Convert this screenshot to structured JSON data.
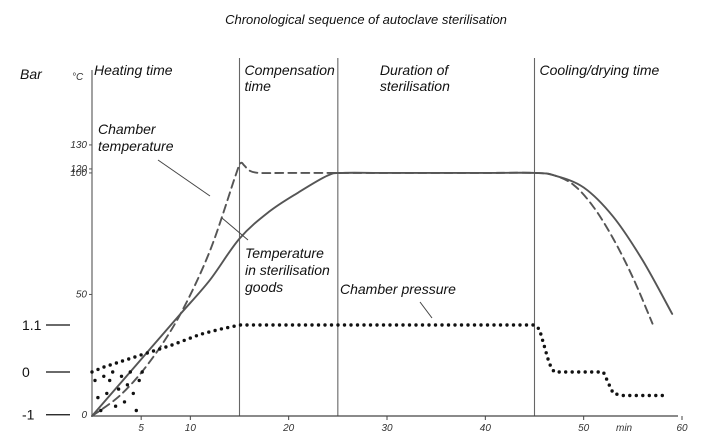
{
  "chart_data": {
    "type": "line",
    "title": "Chronological sequence of autoclave sterilisation",
    "x_unit": "min",
    "xlim": [
      0,
      60
    ],
    "x_ticks": [
      5,
      10,
      20,
      30,
      40,
      50,
      60
    ],
    "temp_unit": "°C",
    "temp_ylim": [
      0,
      130
    ],
    "temp_ticks": [
      50,
      100,
      120,
      130
    ],
    "pressure_unit": "Bar",
    "pressure_ticks": [
      {
        "label": "1.1",
        "value": 1.1
      },
      {
        "label": "0",
        "value": 0
      },
      {
        "label": "-1",
        "value": -1
      }
    ],
    "phases": [
      {
        "label_lines": [
          "Heating time"
        ],
        "start": 0,
        "end": 15
      },
      {
        "label_lines": [
          "Compensation",
          "time"
        ],
        "start": 15,
        "end": 25
      },
      {
        "label_lines": [
          "Duration of",
          "sterilisation"
        ],
        "start": 25,
        "end": 45
      },
      {
        "label_lines": [
          "Cooling/drying time"
        ],
        "start": 45,
        "end": 60
      }
    ],
    "series": [
      {
        "name": "Chamber temperature",
        "label_lines": [
          "Chamber",
          "temperature"
        ],
        "style": "dashed",
        "axis": "temperature",
        "x": [
          0,
          3,
          6,
          9,
          12,
          14.6,
          15.1,
          15.5,
          16,
          17,
          20,
          25,
          30,
          40,
          45,
          47,
          49,
          51,
          53,
          55,
          57
        ],
        "y": [
          0,
          9,
          23,
          42,
          68,
          99,
          104,
          103,
          101,
          100,
          100,
          100,
          100,
          100,
          100,
          99,
          95,
          86,
          73,
          57,
          38
        ]
      },
      {
        "name": "Temperature in sterilisation goods",
        "label_lines": [
          "Temperature",
          "in sterilisation",
          "goods"
        ],
        "style": "solid",
        "axis": "temperature",
        "x": [
          0,
          3,
          6,
          9,
          12,
          15,
          18,
          21,
          24,
          25.5,
          30,
          40,
          45,
          47,
          50,
          53,
          56,
          59
        ],
        "y": [
          0,
          14,
          28,
          42,
          56,
          73,
          84,
          92,
          99,
          100,
          100,
          100,
          100,
          99,
          94,
          82,
          64,
          42
        ]
      },
      {
        "name": "Chamber pressure",
        "label_lines": [
          "Chamber pressure"
        ],
        "style": "dotted",
        "axis": "pressure",
        "x": [
          0,
          1,
          3,
          5,
          8,
          11,
          13,
          15,
          20,
          30,
          40,
          45,
          45.5,
          46,
          46.5,
          47,
          50,
          52,
          53,
          54,
          58
        ],
        "y": [
          0,
          0.1,
          0.25,
          0.4,
          0.62,
          0.88,
          1.0,
          1.1,
          1.1,
          1.1,
          1.1,
          1.1,
          1.0,
          0.6,
          0.2,
          0.0,
          0.0,
          0.0,
          -0.5,
          -0.55,
          -0.55
        ]
      }
    ],
    "pressure_scatter": {
      "x": [
        0.3,
        0.6,
        0.9,
        1.2,
        1.5,
        1.8,
        2.1,
        2.4,
        2.7,
        3.0,
        3.3,
        3.6,
        3.9,
        4.2,
        4.5,
        4.8,
        5.1
      ],
      "y": [
        -0.2,
        -0.6,
        -0.9,
        -0.1,
        -0.5,
        -0.2,
        0.0,
        -0.8,
        -0.4,
        -0.1,
        -0.7,
        -0.3,
        0.0,
        -0.5,
        -0.9,
        -0.2,
        0.0
      ]
    }
  }
}
